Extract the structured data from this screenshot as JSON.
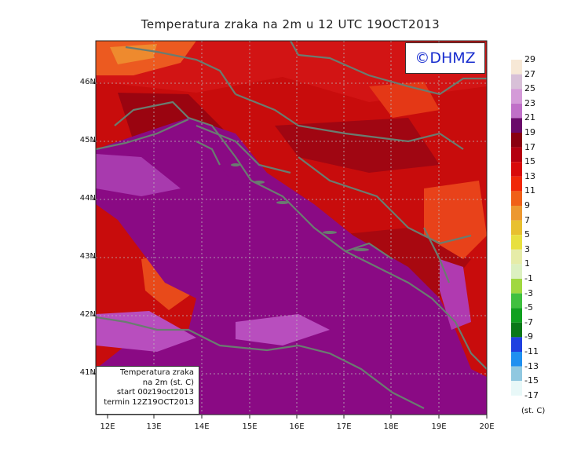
{
  "title": "Temperatura zraka na 2m u 12 UTC 19OCT2013",
  "brand": "©DHMZ",
  "info_box": [
    "Temperatura zraka",
    "na 2m (st. C)",
    "start 00z19oct2013",
    "termin 12Z19OCT2013"
  ],
  "lat_labels": [
    "46N",
    "45N",
    "44N",
    "43N",
    "42N",
    "41N"
  ],
  "lon_labels": [
    "12E",
    "13E",
    "14E",
    "15E",
    "16E",
    "17E",
    "18E",
    "19E",
    "20E"
  ],
  "legend": {
    "unit": "(st. C)",
    "labels": [
      "29",
      "27",
      "25",
      "23",
      "21",
      "19",
      "17",
      "15",
      "13",
      "11",
      "9",
      "7",
      "5",
      "3",
      "1",
      "-1",
      "-3",
      "-5",
      "-7",
      "-9",
      "-11",
      "-13",
      "-15",
      "-17"
    ],
    "colors": [
      "#f7e8d6",
      "#d8c0d8",
      "#d49ad8",
      "#c070c8",
      "#6a0a6a",
      "#8a0010",
      "#b40010",
      "#d80a0a",
      "#f02808",
      "#f06018",
      "#ec9830",
      "#e8c030",
      "#e8e040",
      "#e6eca8",
      "#dcf0c0",
      "#a0d840",
      "#40c040",
      "#10a020",
      "#0a7818",
      "#2040e0",
      "#2090f0",
      "#90c8e0",
      "#e8f8f8"
    ]
  },
  "colors": {
    "sea": "#8a0a84",
    "sea_light": "#b040b4",
    "land_warm": "#cc1010",
    "land_hot": "#e83a14",
    "coast": "#6a7c70"
  }
}
